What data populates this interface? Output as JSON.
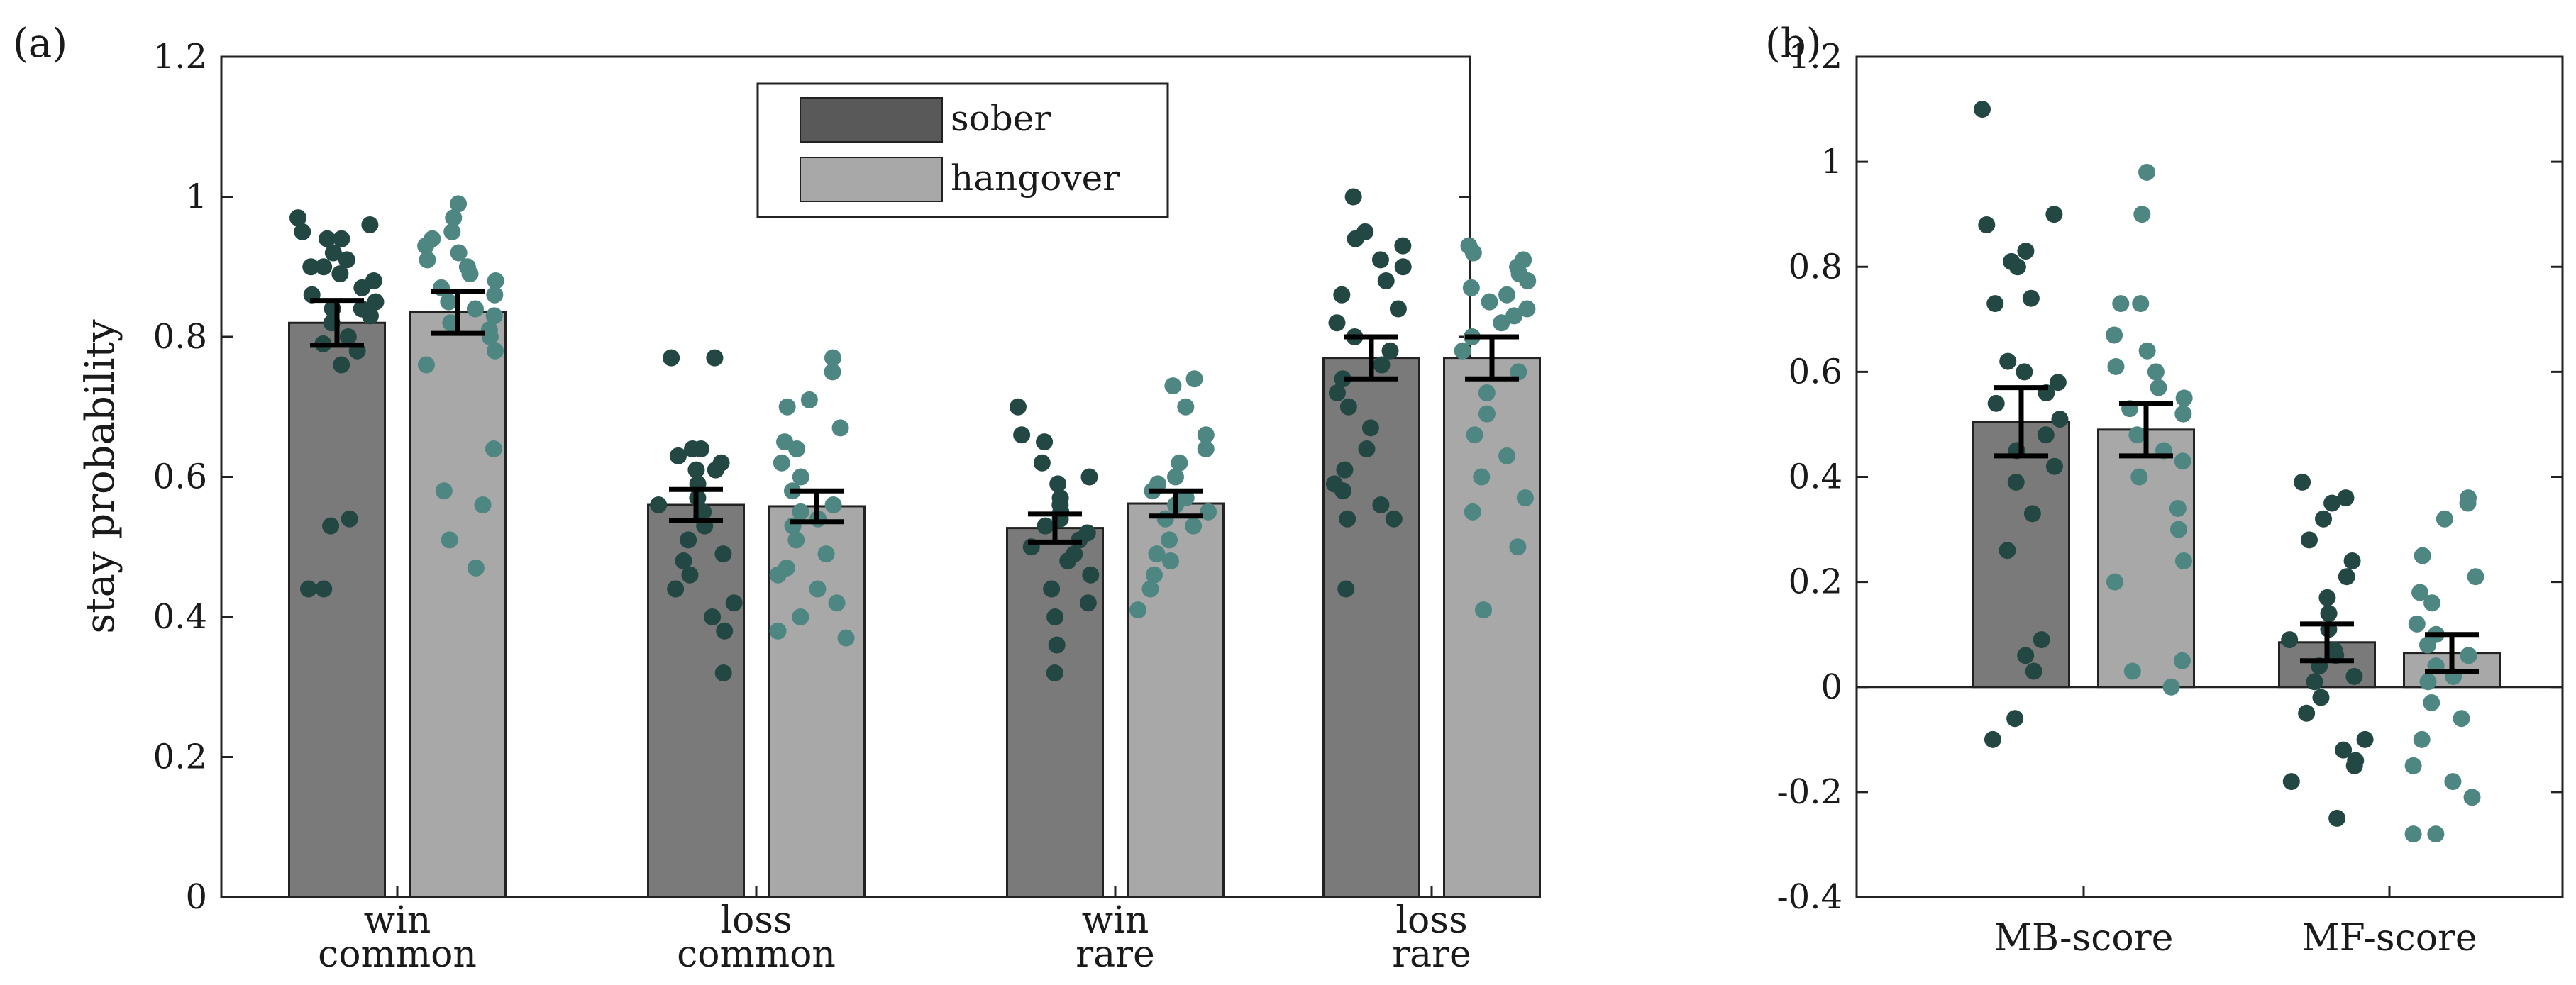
{
  "chart_data": [
    {
      "panel": "(a)",
      "type": "bar",
      "ylabel": "stay probability",
      "ylim": [
        0,
        1.2
      ],
      "yticks": [
        "0",
        "0.2",
        "0.4",
        "0.6",
        "0.8",
        "1",
        "1.2"
      ],
      "ytick_values": [
        0,
        0.2,
        0.4,
        0.6,
        0.8,
        1.0,
        1.2
      ],
      "categories": [
        [
          "win",
          "common"
        ],
        [
          "loss",
          "common"
        ],
        [
          "win",
          "rare"
        ],
        [
          "loss",
          "rare"
        ]
      ],
      "legend": {
        "placement": "top-center",
        "entries": [
          "sober",
          "hangover"
        ]
      },
      "series": [
        {
          "name": "sober",
          "color": "#7a7a7a",
          "dot_color": "#234743",
          "values": [
            0.82,
            0.56,
            0.527,
            0.77
          ],
          "errors": [
            0.032,
            0.022,
            0.02,
            0.03
          ],
          "points": [
            [
              0.97,
              0.96,
              0.95,
              0.94,
              0.94,
              0.92,
              0.91,
              0.9,
              0.9,
              0.89,
              0.88,
              0.87,
              0.86,
              0.85,
              0.84,
              0.84,
              0.83,
              0.82,
              0.8,
              0.79,
              0.78,
              0.76,
              0.54,
              0.53,
              0.44,
              0.44
            ],
            [
              0.77,
              0.77,
              0.64,
              0.64,
              0.63,
              0.62,
              0.61,
              0.61,
              0.59,
              0.57,
              0.56,
              0.55,
              0.53,
              0.51,
              0.49,
              0.48,
              0.46,
              0.44,
              0.42,
              0.4,
              0.38,
              0.32
            ],
            [
              0.7,
              0.66,
              0.65,
              0.62,
              0.6,
              0.59,
              0.57,
              0.56,
              0.55,
              0.54,
              0.53,
              0.52,
              0.51,
              0.5,
              0.49,
              0.48,
              0.46,
              0.44,
              0.42,
              0.4,
              0.36,
              0.32
            ],
            [
              1.0,
              0.95,
              0.94,
              0.93,
              0.91,
              0.9,
              0.88,
              0.86,
              0.84,
              0.82,
              0.8,
              0.78,
              0.76,
              0.74,
              0.72,
              0.7,
              0.67,
              0.64,
              0.61,
              0.59,
              0.58,
              0.56,
              0.54,
              0.54,
              0.44
            ]
          ]
        },
        {
          "name": "hangover",
          "color": "#a8a8a8",
          "dot_color": "#4e8682",
          "values": [
            0.835,
            0.558,
            0.562,
            0.77
          ],
          "errors": [
            0.03,
            0.022,
            0.018,
            0.03
          ],
          "points": [
            [
              0.99,
              0.97,
              0.95,
              0.94,
              0.93,
              0.92,
              0.91,
              0.9,
              0.89,
              0.88,
              0.87,
              0.86,
              0.85,
              0.84,
              0.83,
              0.82,
              0.81,
              0.8,
              0.78,
              0.76,
              0.64,
              0.58,
              0.56,
              0.51,
              0.47
            ],
            [
              0.77,
              0.75,
              0.71,
              0.7,
              0.67,
              0.65,
              0.64,
              0.62,
              0.6,
              0.58,
              0.56,
              0.55,
              0.54,
              0.53,
              0.51,
              0.49,
              0.47,
              0.46,
              0.44,
              0.42,
              0.4,
              0.38,
              0.37
            ],
            [
              0.74,
              0.73,
              0.7,
              0.66,
              0.64,
              0.62,
              0.6,
              0.59,
              0.58,
              0.57,
              0.56,
              0.55,
              0.54,
              0.53,
              0.51,
              0.49,
              0.48,
              0.46,
              0.44,
              0.41
            ],
            [
              0.93,
              0.92,
              0.91,
              0.9,
              0.89,
              0.88,
              0.87,
              0.86,
              0.85,
              0.84,
              0.83,
              0.82,
              0.8,
              0.78,
              0.75,
              0.72,
              0.69,
              0.66,
              0.63,
              0.6,
              0.57,
              0.55,
              0.5,
              0.41
            ]
          ]
        }
      ]
    },
    {
      "panel": "(b)",
      "type": "bar",
      "ylim": [
        -0.4,
        1.2
      ],
      "yticks": [
        "-0.4",
        "-0.2",
        "0",
        "0.2",
        "0.4",
        "0.6",
        "0.8",
        "1",
        "1.2"
      ],
      "ytick_values": [
        -0.4,
        -0.2,
        0,
        0.2,
        0.4,
        0.6,
        0.8,
        1.0,
        1.2
      ],
      "categories": [
        [
          "MB-score"
        ],
        [
          "MF-score"
        ]
      ],
      "series": [
        {
          "name": "sober",
          "color": "#7a7a7a",
          "dot_color": "#234743",
          "values": [
            0.505,
            0.085
          ],
          "errors": [
            0.065,
            0.035
          ],
          "points": [
            [
              1.1,
              0.9,
              0.88,
              0.83,
              0.81,
              0.8,
              0.74,
              0.73,
              0.62,
              0.6,
              0.58,
              0.56,
              0.54,
              0.51,
              0.48,
              0.45,
              0.42,
              0.39,
              0.33,
              0.26,
              0.09,
              0.06,
              0.03,
              -0.06,
              -0.1
            ],
            [
              0.39,
              0.36,
              0.35,
              0.32,
              0.28,
              0.24,
              0.21,
              0.17,
              0.14,
              0.11,
              0.09,
              0.07,
              0.06,
              0.04,
              0.02,
              0.01,
              -0.02,
              -0.05,
              -0.1,
              -0.12,
              -0.14,
              -0.15,
              -0.18,
              -0.25
            ]
          ]
        },
        {
          "name": "hangover",
          "color": "#a8a8a8",
          "dot_color": "#4e8682",
          "values": [
            0.49,
            0.065
          ],
          "errors": [
            0.05,
            0.035
          ],
          "points": [
            [
              0.98,
              0.9,
              0.73,
              0.73,
              0.67,
              0.64,
              0.61,
              0.6,
              0.57,
              0.55,
              0.53,
              0.52,
              0.48,
              0.45,
              0.43,
              0.4,
              0.34,
              0.3,
              0.24,
              0.2,
              0.05,
              0.03,
              0.0
            ],
            [
              0.36,
              0.35,
              0.32,
              0.25,
              0.21,
              0.18,
              0.16,
              0.12,
              0.1,
              0.08,
              0.06,
              0.04,
              0.02,
              0.01,
              -0.03,
              -0.06,
              -0.1,
              -0.15,
              -0.18,
              -0.21,
              -0.28,
              -0.28
            ]
          ]
        }
      ]
    }
  ]
}
